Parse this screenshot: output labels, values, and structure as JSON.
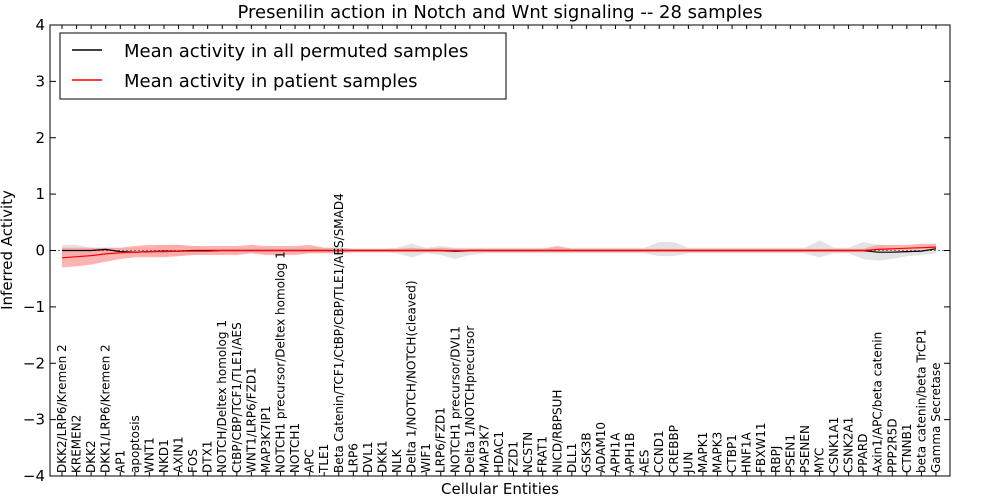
{
  "chart_data": {
    "type": "line",
    "title": "Presenilin action in Notch and Wnt signaling -- 28 samples",
    "xlabel": "Cellular Entities",
    "ylabel": "Inferred Activity",
    "ylim": [
      -4,
      4
    ],
    "yticks": [
      -4,
      -3,
      -2,
      -1,
      0,
      1,
      2,
      3,
      4
    ],
    "ytick_labels": [
      "−4",
      "−3",
      "−2",
      "−1",
      "0",
      "1",
      "2",
      "3",
      "4"
    ],
    "legend": {
      "placement": "top-left",
      "entries": [
        "Mean activity in all permuted samples",
        "Mean activity in patient samples"
      ]
    },
    "colors": {
      "permuted": "#000000",
      "patient": "#ff0000",
      "permuted_band": "#d9d9d9",
      "patient_band": "#ff9a9a"
    },
    "categories": [
      "DKK2/LRP6/Kremen 2",
      "KREMEN2",
      "DKK2",
      "DKK1/LRP6/Kremen 2",
      "AP1",
      "apoptosis",
      "WNT1",
      "NKD1",
      "AXIN1",
      "FOS",
      "DTX1",
      "NOTCH/Deltex homolog 1",
      "CtBP/CBP/TCF1/TLE1/AES",
      "WNT1/LRP6/FZD1",
      "MAP3K7IP1",
      "NOTCH1 precursor/Deltex homolog 1",
      "NOTCH1",
      "APC",
      "TLE1",
      "Beta Catenin/TCF1/CtBP/CBP/TLE1/AES/SMAD4",
      "LRP6",
      "DVL1",
      "DKK1",
      "NLK",
      "Delta 1/NOTCH/NOTCH(cleaved)",
      "WIF1",
      "LRP6/FZD1",
      "NOTCH1 precursor/DVL1",
      "Delta 1/NOTCHprecursor",
      "MAP3K7",
      "HDAC1",
      "FZD1",
      "NCSTN",
      "FRAT1",
      "NICD/RBPSUH",
      "DLL1",
      "GSK3B",
      "ADAM10",
      "APH1A",
      "APH1B",
      "AES",
      "CCND1",
      "CREBBP",
      "JUN",
      "MAPK1",
      "MAPK3",
      "CTBP1",
      "HNF1A",
      "FBXW11",
      "RBPJ",
      "PSEN1",
      "PSENEN",
      "MYC",
      "CSNK1A1",
      "CSNK2A1",
      "PPARD",
      "Axin1/APC/beta catenin",
      "PPP2R5D",
      "CTNNB1",
      "beta catenin/beta TrCP1",
      "Gamma Secretase"
    ],
    "series": [
      {
        "name": "Mean activity in all permuted samples",
        "values": [
          0.0,
          0.0,
          0.0,
          0.02,
          -0.02,
          -0.03,
          -0.02,
          -0.01,
          -0.01,
          0.0,
          0.0,
          0.0,
          0.0,
          0.0,
          0.0,
          0.0,
          0.0,
          0.0,
          0.0,
          0.0,
          0.0,
          0.0,
          0.0,
          0.0,
          0.0,
          0.0,
          0.0,
          -0.01,
          0.0,
          0.0,
          0.0,
          0.0,
          0.0,
          0.0,
          0.0,
          0.0,
          0.0,
          0.0,
          0.0,
          0.0,
          0.0,
          0.0,
          0.0,
          0.0,
          0.0,
          0.0,
          0.0,
          0.0,
          0.0,
          0.0,
          0.0,
          0.0,
          0.0,
          0.0,
          0.0,
          0.0,
          -0.03,
          -0.03,
          -0.02,
          -0.01,
          0.03
        ],
        "lower": [
          -0.1,
          -0.1,
          -0.05,
          -0.05,
          -0.05,
          -0.08,
          -0.1,
          -0.1,
          -0.1,
          -0.08,
          -0.05,
          -0.05,
          -0.05,
          -0.05,
          -0.05,
          -0.05,
          -0.05,
          -0.05,
          -0.05,
          -0.05,
          -0.03,
          -0.03,
          -0.03,
          -0.05,
          -0.12,
          -0.05,
          -0.08,
          -0.15,
          -0.08,
          -0.05,
          -0.05,
          -0.05,
          -0.05,
          -0.05,
          -0.05,
          -0.05,
          -0.05,
          -0.05,
          -0.05,
          -0.05,
          -0.05,
          -0.1,
          -0.1,
          -0.05,
          -0.05,
          -0.05,
          -0.05,
          -0.05,
          -0.05,
          -0.05,
          -0.05,
          -0.05,
          -0.12,
          -0.05,
          -0.05,
          -0.15,
          -0.18,
          -0.15,
          -0.1,
          -0.08,
          -0.05
        ],
        "upper": [
          0.1,
          0.1,
          0.05,
          0.05,
          0.05,
          0.05,
          0.05,
          0.1,
          0.1,
          0.08,
          0.05,
          0.05,
          0.05,
          0.05,
          0.05,
          0.05,
          0.05,
          0.05,
          0.05,
          0.05,
          0.03,
          0.03,
          0.03,
          0.05,
          0.12,
          0.05,
          0.08,
          0.05,
          0.05,
          0.05,
          0.05,
          0.05,
          0.05,
          0.05,
          0.05,
          0.05,
          0.05,
          0.05,
          0.05,
          0.05,
          0.05,
          0.15,
          0.15,
          0.05,
          0.05,
          0.05,
          0.05,
          0.05,
          0.05,
          0.05,
          0.05,
          0.05,
          0.18,
          0.05,
          0.05,
          0.15,
          0.1,
          0.05,
          0.05,
          0.05,
          0.1
        ]
      },
      {
        "name": "Mean activity in patient samples",
        "values": [
          -0.13,
          -0.11,
          -0.09,
          -0.06,
          -0.04,
          -0.03,
          -0.02,
          -0.02,
          -0.01,
          -0.01,
          -0.01,
          0.0,
          0.0,
          0.0,
          0.0,
          0.0,
          0.0,
          0.0,
          0.0,
          0.0,
          0.0,
          0.0,
          0.0,
          0.0,
          0.0,
          0.0,
          0.0,
          0.0,
          0.0,
          0.0,
          0.0,
          0.0,
          0.0,
          0.0,
          0.0,
          0.0,
          0.0,
          0.0,
          0.0,
          0.0,
          0.0,
          0.0,
          0.0,
          0.0,
          0.0,
          0.0,
          0.0,
          0.0,
          0.0,
          0.0,
          0.0,
          0.0,
          0.0,
          0.0,
          0.0,
          0.0,
          0.02,
          0.03,
          0.04,
          0.05,
          0.06
        ],
        "lower": [
          -0.3,
          -0.28,
          -0.25,
          -0.2,
          -0.15,
          -0.12,
          -0.12,
          -0.12,
          -0.1,
          -0.08,
          -0.08,
          -0.08,
          -0.08,
          -0.05,
          -0.08,
          -0.08,
          -0.08,
          -0.05,
          -0.05,
          -0.05,
          -0.03,
          -0.03,
          -0.03,
          -0.03,
          -0.03,
          -0.03,
          -0.03,
          -0.03,
          -0.03,
          -0.03,
          -0.03,
          -0.03,
          -0.03,
          -0.03,
          -0.03,
          -0.03,
          -0.03,
          -0.03,
          -0.03,
          -0.03,
          -0.03,
          -0.03,
          -0.03,
          -0.03,
          -0.03,
          -0.03,
          -0.03,
          -0.03,
          -0.03,
          -0.03,
          -0.03,
          -0.03,
          -0.03,
          -0.03,
          -0.03,
          -0.03,
          0.0,
          0.0,
          0.01,
          0.02,
          0.03
        ],
        "upper": [
          0.05,
          0.05,
          0.05,
          0.05,
          0.05,
          0.08,
          0.1,
          0.1,
          0.1,
          0.08,
          0.08,
          0.08,
          0.08,
          0.1,
          0.08,
          0.08,
          0.08,
          0.1,
          0.05,
          0.05,
          0.03,
          0.03,
          0.03,
          0.03,
          0.05,
          0.03,
          0.05,
          0.03,
          0.03,
          0.03,
          0.03,
          0.03,
          0.03,
          0.03,
          0.08,
          0.03,
          0.03,
          0.03,
          0.03,
          0.03,
          0.03,
          0.03,
          0.03,
          0.03,
          0.03,
          0.03,
          0.03,
          0.03,
          0.03,
          0.03,
          0.03,
          0.03,
          0.03,
          0.03,
          0.03,
          0.03,
          0.1,
          0.1,
          0.1,
          0.12,
          0.12
        ]
      }
    ]
  }
}
